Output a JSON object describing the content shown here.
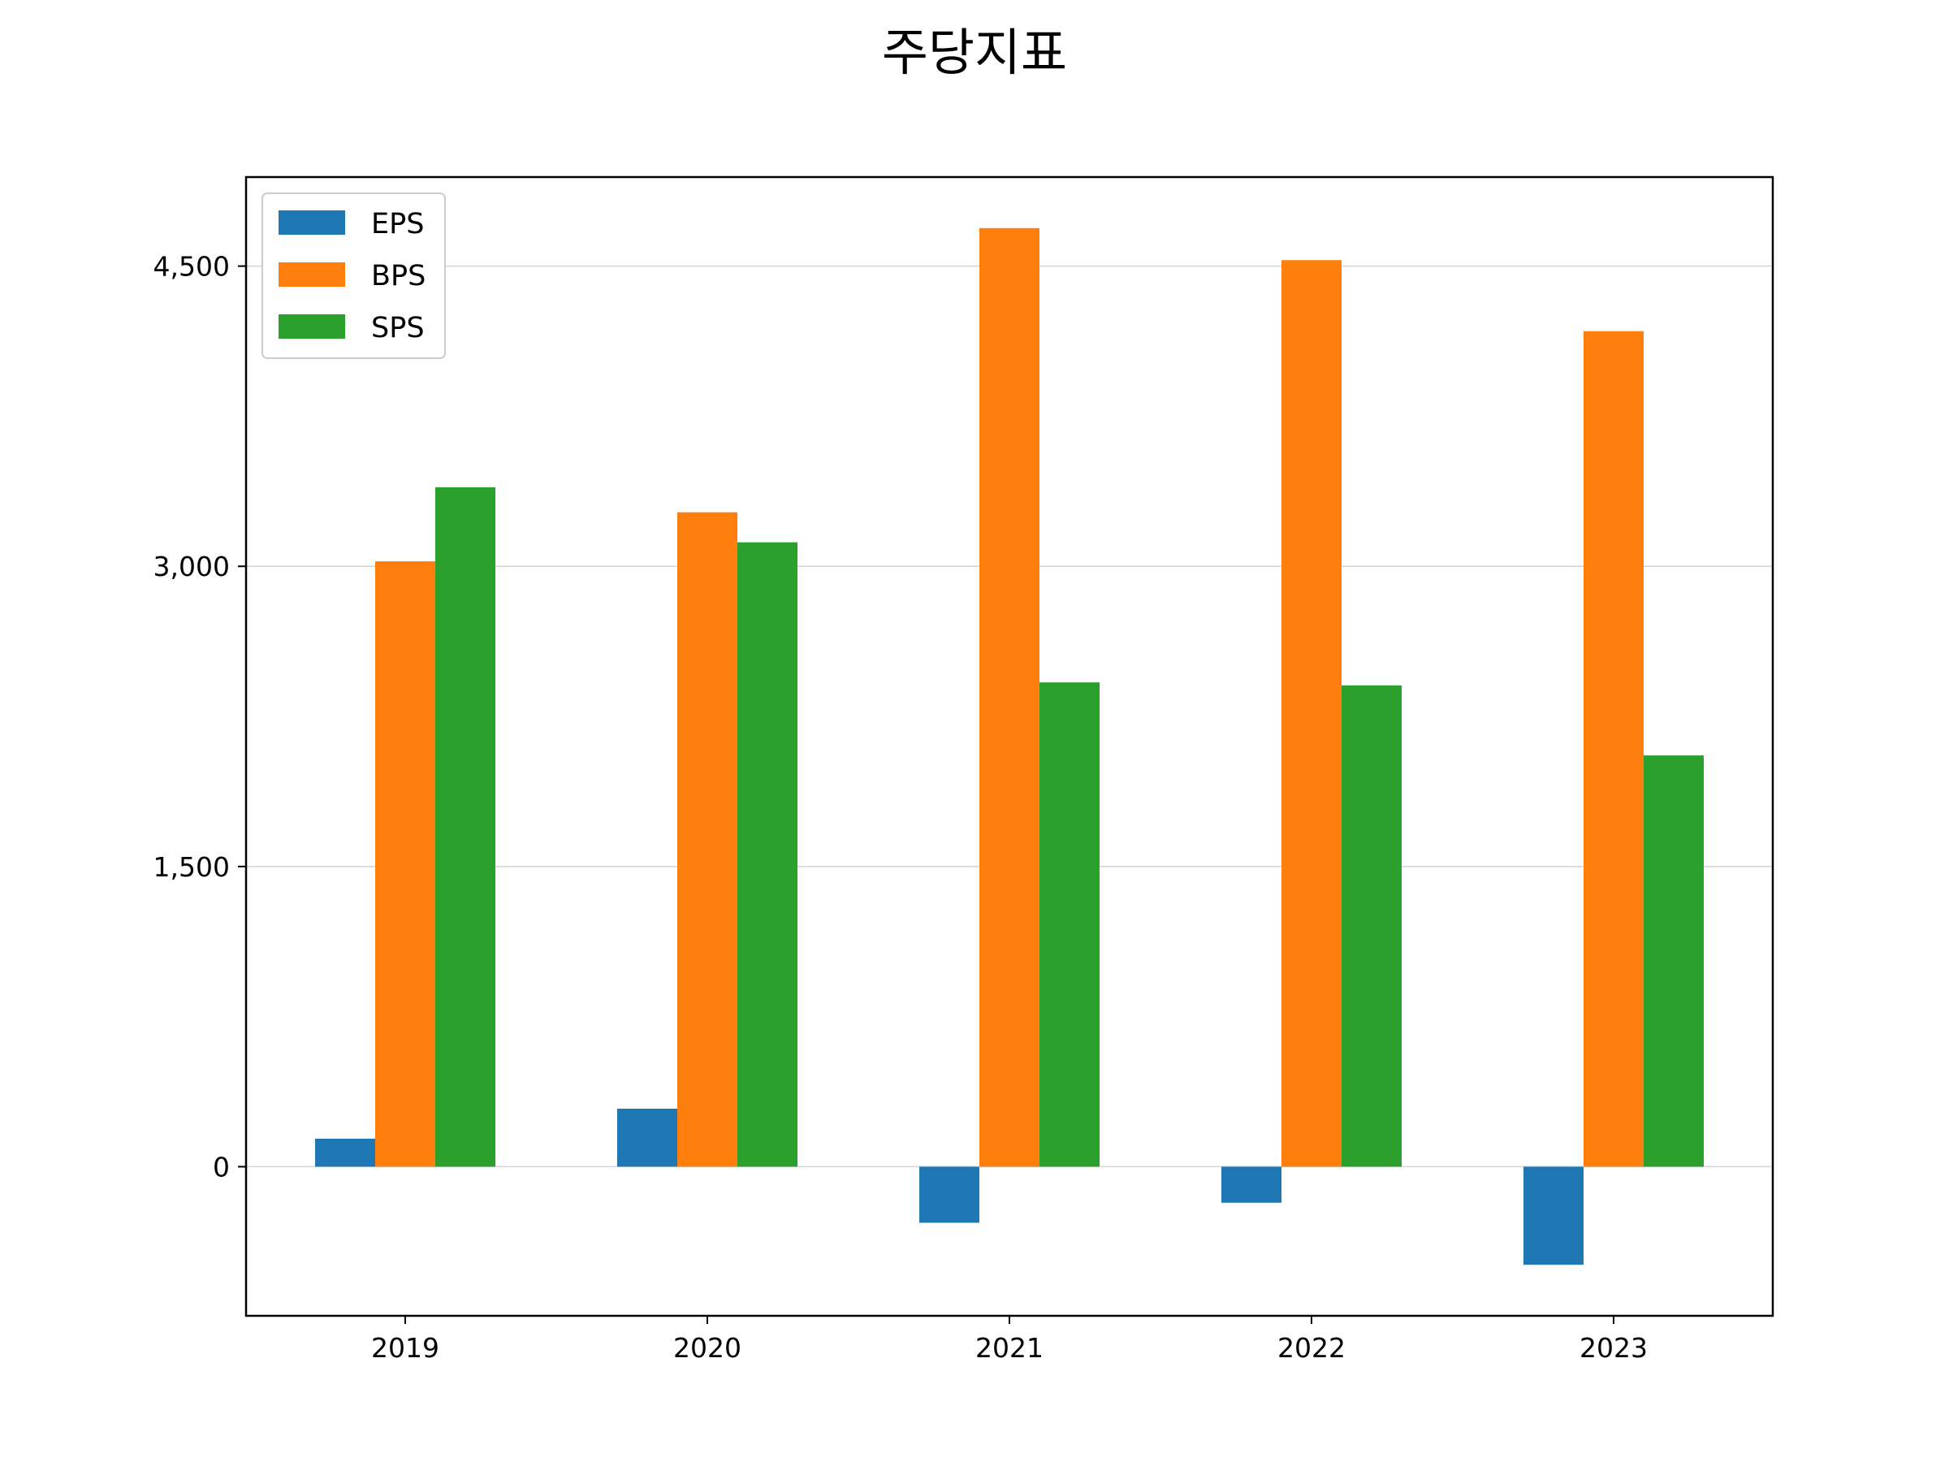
{
  "chart_data": {
    "type": "bar",
    "title": "주당지표",
    "xlabel": "",
    "ylabel": "",
    "categories": [
      "2019",
      "2020",
      "2021",
      "2022",
      "2023"
    ],
    "series": [
      {
        "name": "EPS",
        "color": "#1f77b4",
        "values": [
          140,
          290,
          -280,
          -180,
          -490
        ]
      },
      {
        "name": "BPS",
        "color": "#ff7f0e",
        "values": [
          3025,
          3270,
          4690,
          4530,
          4175
        ]
      },
      {
        "name": "SPS",
        "color": "#2ca02c",
        "values": [
          3395,
          3120,
          2420,
          2405,
          2055
        ]
      }
    ],
    "ylim": [
      -745,
      4945
    ],
    "yticks": [
      0,
      1500,
      3000,
      4500
    ],
    "ytick_labels": [
      "0",
      "1,500",
      "3,000",
      "4,500"
    ],
    "grid": "horizontal",
    "legend_position": "top-left"
  }
}
